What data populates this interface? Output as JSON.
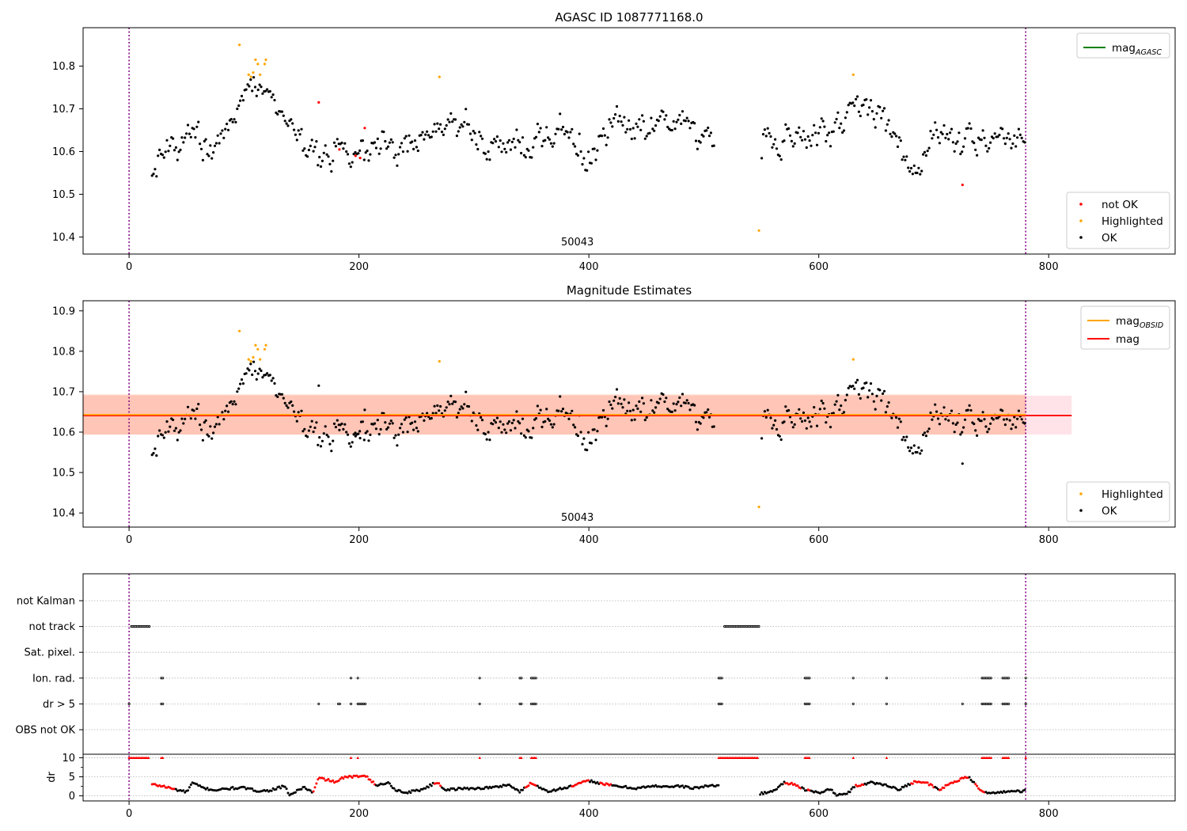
{
  "figure": {
    "title": "AGASC ID 1087771168.0"
  },
  "colors": {
    "ok": "#000000",
    "highlighted": "#ffa500",
    "not_ok": "#ff0000",
    "mag_agasc": "#008000",
    "mag_obsid": "#ffa500",
    "mag": "#ff0000",
    "band_outer": "#ffc0cb",
    "band_inner": "#ffa07a",
    "obs_boundary": "#800080",
    "grid": "#b0b0b0"
  },
  "chart_data": [
    {
      "type": "scatter",
      "title": "AGASC ID 1087771168.0",
      "xlim": [
        -40,
        910
      ],
      "ylim": [
        10.36,
        10.89
      ],
      "xticks": [
        0,
        200,
        400,
        600,
        800
      ],
      "yticks": [
        10.4,
        10.5,
        10.6,
        10.7,
        10.8
      ],
      "annotation": {
        "text": "50043",
        "x": 390,
        "y": 10.39
      },
      "obsid_boundaries": [
        0,
        780
      ],
      "legend_lines": [
        {
          "label": "mag",
          "sub": "AGASC",
          "color_key": "mag_agasc"
        }
      ],
      "legend_points": [
        {
          "label": "not OK",
          "color_key": "not_ok"
        },
        {
          "label": "Highlighted",
          "color_key": "highlighted"
        },
        {
          "label": "OK",
          "color_key": "ok"
        }
      ],
      "trend": [
        [
          20,
          10.58
        ],
        [
          40,
          10.635
        ],
        [
          60,
          10.63
        ],
        [
          75,
          10.605
        ],
        [
          90,
          10.65
        ],
        [
          100,
          10.76
        ],
        [
          112,
          10.75
        ],
        [
          125,
          10.72
        ],
        [
          140,
          10.67
        ],
        [
          155,
          10.6
        ],
        [
          170,
          10.58
        ],
        [
          185,
          10.6
        ],
        [
          200,
          10.6
        ],
        [
          215,
          10.6
        ],
        [
          230,
          10.6
        ],
        [
          250,
          10.625
        ],
        [
          265,
          10.645
        ],
        [
          280,
          10.67
        ],
        [
          295,
          10.665
        ],
        [
          305,
          10.61
        ],
        [
          330,
          10.61
        ],
        [
          360,
          10.64
        ],
        [
          380,
          10.655
        ],
        [
          400,
          10.58
        ],
        [
          420,
          10.665
        ],
        [
          440,
          10.66
        ],
        [
          460,
          10.685
        ],
        [
          480,
          10.68
        ],
        [
          495,
          10.62
        ],
        [
          510,
          10.615
        ],
        [
          550,
          10.64
        ],
        [
          570,
          10.625
        ],
        [
          590,
          10.625
        ],
        [
          610,
          10.66
        ],
        [
          630,
          10.71
        ],
        [
          645,
          10.71
        ],
        [
          665,
          10.62
        ],
        [
          680,
          10.57
        ],
        [
          700,
          10.64
        ],
        [
          720,
          10.59
        ],
        [
          735,
          10.62
        ],
        [
          760,
          10.64
        ],
        [
          780,
          10.64
        ]
      ],
      "gaps": [
        [
          510,
          550
        ]
      ],
      "highlighted": [
        [
          96,
          10.85
        ],
        [
          104,
          10.78
        ],
        [
          106,
          10.775
        ],
        [
          108,
          10.785
        ],
        [
          110,
          10.815
        ],
        [
          112,
          10.805
        ],
        [
          114,
          10.78
        ],
        [
          118,
          10.805
        ],
        [
          119,
          10.815
        ],
        [
          270,
          10.775
        ],
        [
          548,
          10.415
        ],
        [
          630,
          10.78
        ]
      ],
      "not_ok": [
        [
          165,
          10.715
        ],
        [
          183,
          10.605
        ],
        [
          197,
          10.59
        ],
        [
          201,
          10.585
        ],
        [
          205,
          10.655
        ],
        [
          725,
          10.522
        ]
      ]
    },
    {
      "type": "scatter",
      "title": "Magnitude Estimates",
      "xlim": [
        -40,
        910
      ],
      "ylim": [
        10.365,
        10.925
      ],
      "xticks": [
        0,
        200,
        400,
        600,
        800
      ],
      "yticks": [
        10.4,
        10.5,
        10.6,
        10.7,
        10.8,
        10.9
      ],
      "annotation": {
        "text": "50043",
        "x": 390,
        "y": 10.39
      },
      "obsid_boundaries": [
        0,
        780
      ],
      "legend_lines": [
        {
          "label": "mag",
          "sub": "OBSID",
          "color_key": "mag_obsid"
        },
        {
          "label": "mag",
          "sub": "",
          "color_key": "mag"
        }
      ],
      "legend_points": [
        {
          "label": "Highlighted",
          "color_key": "highlighted"
        },
        {
          "label": "OK",
          "color_key": "ok"
        }
      ],
      "mag": 10.641,
      "mag_obsid": 10.643,
      "band_outer": {
        "x": [
          -40,
          820
        ],
        "y": [
          10.594,
          10.69
        ]
      },
      "band_inner": {
        "x": [
          -40,
          780
        ],
        "y": [
          10.594,
          10.693
        ]
      }
    },
    {
      "type": "scatter",
      "title": "",
      "xlim": [
        -40,
        910
      ],
      "xticks": [
        0,
        200,
        400,
        600,
        800
      ],
      "obsid_boundaries": [
        0,
        780
      ],
      "flag_categories": [
        "not Kalman",
        "not track",
        "Sat. pixel.",
        "Ion. rad.",
        "dr > 5",
        "OBS not OK"
      ],
      "flag_segments": {
        "not track": [
          [
            2,
            18
          ],
          [
            518,
            548
          ]
        ],
        "Ion. rad.": [
          [
            28,
            30
          ],
          [
            193,
            193
          ],
          [
            199,
            199
          ],
          [
            305,
            305
          ],
          [
            340,
            342
          ],
          [
            350,
            354
          ],
          [
            513,
            516
          ],
          [
            588,
            593
          ],
          [
            630,
            630
          ],
          [
            659,
            659
          ],
          [
            742,
            750
          ],
          [
            760,
            766
          ],
          [
            780,
            780
          ]
        ],
        "dr > 5": [
          [
            0,
            0
          ],
          [
            28,
            30
          ],
          [
            165,
            165
          ],
          [
            182,
            184
          ],
          [
            193,
            193
          ],
          [
            199,
            206
          ],
          [
            305,
            305
          ],
          [
            340,
            342
          ],
          [
            350,
            354
          ],
          [
            513,
            516
          ],
          [
            588,
            593
          ],
          [
            630,
            630
          ],
          [
            659,
            659
          ],
          [
            725,
            725
          ],
          [
            742,
            750
          ],
          [
            760,
            766
          ],
          [
            780,
            780
          ]
        ]
      },
      "dr": {
        "ylabel": "dr",
        "ylim": [
          -0.5,
          10.3
        ],
        "yticks": [
          0,
          5,
          10
        ],
        "clip_value": 10,
        "trend": [
          [
            20,
            3.0
          ],
          [
            30,
            2.5
          ],
          [
            40,
            1.7
          ],
          [
            50,
            1.0
          ],
          [
            55,
            3.4
          ],
          [
            65,
            2.0
          ],
          [
            75,
            1.5
          ],
          [
            90,
            2.0
          ],
          [
            100,
            2.1
          ],
          [
            110,
            1.4
          ],
          [
            120,
            1.3
          ],
          [
            135,
            2.5
          ],
          [
            140,
            0.2
          ],
          [
            152,
            2.3
          ],
          [
            160,
            0.8
          ],
          [
            165,
            4.7
          ],
          [
            182,
            3.5
          ],
          [
            185,
            4.8
          ],
          [
            200,
            5.1
          ],
          [
            205,
            5.6
          ],
          [
            215,
            2.7
          ],
          [
            225,
            3.5
          ],
          [
            232,
            1.6
          ],
          [
            240,
            0.8
          ],
          [
            255,
            1.7
          ],
          [
            268,
            3.6
          ],
          [
            275,
            1.6
          ],
          [
            290,
            1.9
          ],
          [
            305,
            2.0
          ],
          [
            320,
            2.3
          ],
          [
            330,
            3.0
          ],
          [
            340,
            1.0
          ],
          [
            350,
            3.5
          ],
          [
            355,
            2.5
          ],
          [
            365,
            1.2
          ],
          [
            385,
            2.5
          ],
          [
            400,
            4.0
          ],
          [
            410,
            3.3
          ],
          [
            420,
            2.7
          ],
          [
            440,
            2.0
          ],
          [
            460,
            2.6
          ],
          [
            475,
            2.4
          ],
          [
            480,
            2.6
          ],
          [
            490,
            2.0
          ],
          [
            500,
            2.4
          ],
          [
            510,
            2.8
          ],
          [
            550,
            0.6
          ],
          [
            560,
            1.2
          ],
          [
            570,
            3.5
          ],
          [
            580,
            3.0
          ],
          [
            588,
            1.5
          ],
          [
            600,
            0.8
          ],
          [
            610,
            1.8
          ],
          [
            615,
            0.2
          ],
          [
            625,
            0.5
          ],
          [
            630,
            2.4
          ],
          [
            645,
            3.5
          ],
          [
            660,
            2.8
          ],
          [
            670,
            1.5
          ],
          [
            675,
            2.6
          ],
          [
            685,
            3.9
          ],
          [
            695,
            3.2
          ],
          [
            705,
            1.5
          ],
          [
            715,
            3.4
          ],
          [
            730,
            5.0
          ],
          [
            740,
            1.7
          ],
          [
            750,
            0.5
          ],
          [
            760,
            1.1
          ],
          [
            780,
            1.3
          ]
        ],
        "red_ranges": [
          [
            20,
            40
          ],
          [
            160,
            215
          ],
          [
            265,
            272
          ],
          [
            345,
            355
          ],
          [
            385,
            400
          ],
          [
            410,
            420
          ],
          [
            570,
            585
          ],
          [
            590,
            593
          ],
          [
            632,
            640
          ],
          [
            680,
            700
          ],
          [
            705,
            730
          ],
          [
            735,
            745
          ]
        ],
        "clipped": [
          [
            0,
            18
          ],
          [
            28,
            30
          ],
          [
            193,
            193
          ],
          [
            199,
            199
          ],
          [
            305,
            305
          ],
          [
            340,
            342
          ],
          [
            350,
            354
          ],
          [
            513,
            548
          ],
          [
            588,
            593
          ],
          [
            630,
            630
          ],
          [
            659,
            659
          ],
          [
            742,
            750
          ],
          [
            760,
            766
          ],
          [
            780,
            780
          ]
        ]
      }
    }
  ]
}
